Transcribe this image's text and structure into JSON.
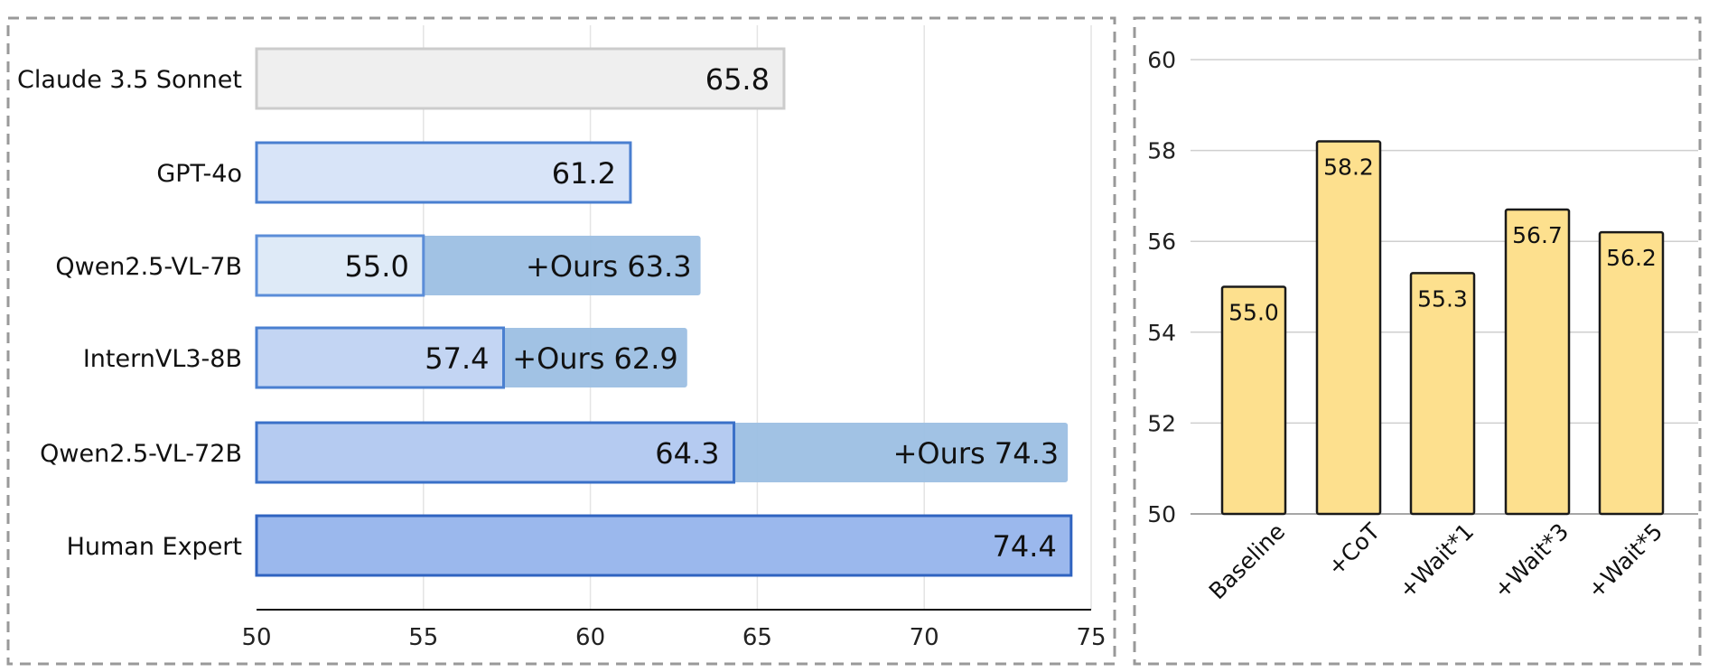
{
  "chart_data": [
    {
      "type": "bar",
      "orientation": "horizontal",
      "title": "",
      "xlabel": "",
      "ylabel": "",
      "xlim": [
        50,
        75
      ],
      "xticks": [
        50,
        55,
        60,
        65,
        70,
        75
      ],
      "grid": true,
      "categories": [
        "Claude 3.5 Sonnet",
        "GPT-4o",
        "Qwen2.5-VL-7B",
        "InternVL3-8B",
        "Qwen2.5-VL-72B",
        "Human Expert"
      ],
      "series": [
        {
          "values": [
            65.8,
            61.2,
            55.0,
            57.4,
            64.3,
            74.4
          ],
          "labels": [
            "65.8",
            "61.2",
            "55.0",
            "57.4",
            "64.3",
            "74.4"
          ]
        },
        {
          "values": [
            null,
            null,
            63.3,
            62.9,
            74.3,
            null
          ],
          "labels": [
            null,
            null,
            "+Ours 63.3",
            "+Ours 62.9",
            "+Ours 74.3",
            null
          ]
        }
      ],
      "colors": {
        "base_fills": [
          "#efefef",
          "#d8e4f8",
          "#deeaf7",
          "#c3d5f3",
          "#b5cbf1",
          "#9bb8ed"
        ],
        "base_strokes": [
          "#cccccc",
          "#4a7fd0",
          "#5b8dd8",
          "#4a7fd0",
          "#3a70c8",
          "#2f63c0"
        ],
        "ours_fill": "#9cbfe3"
      }
    },
    {
      "type": "bar",
      "title": "",
      "xlabel": "",
      "ylabel": "",
      "ylim": [
        50,
        60
      ],
      "yticks": [
        50,
        52,
        54,
        56,
        58,
        60
      ],
      "grid": true,
      "categories": [
        "Baseline",
        "+CoT",
        "+Wait*1",
        "+Wait*3",
        "+Wait*5"
      ],
      "values": [
        55.0,
        58.2,
        55.3,
        56.7,
        56.2
      ],
      "labels": [
        "55.0",
        "58.2",
        "55.3",
        "56.7",
        "56.2"
      ],
      "colors": {
        "fill": "#fde08e",
        "stroke": "#1a1a1a"
      }
    }
  ]
}
